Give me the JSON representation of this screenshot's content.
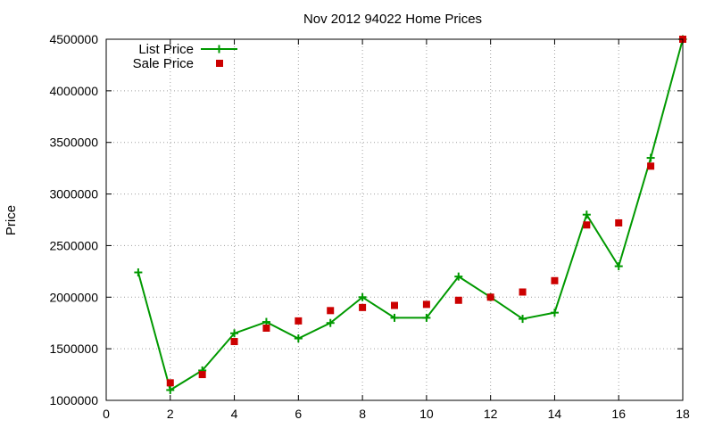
{
  "chart_data": {
    "type": "line",
    "title": "Nov 2012 94022 Home Prices",
    "xlabel": "",
    "ylabel": "Price",
    "xlim": [
      0,
      18
    ],
    "ylim": [
      1000000,
      4500000
    ],
    "xticks": [
      0,
      2,
      4,
      6,
      8,
      10,
      12,
      14,
      16,
      18
    ],
    "yticks": [
      1000000,
      1500000,
      2000000,
      2500000,
      3000000,
      3500000,
      4000000,
      4500000
    ],
    "grid": true,
    "legend_position": "top-left",
    "series": [
      {
        "name": "List Price",
        "style": "line-with-plus-markers",
        "color": "#009900",
        "x": [
          1,
          2,
          3,
          4,
          5,
          6,
          7,
          8,
          9,
          10,
          11,
          12,
          13,
          14,
          15,
          16,
          17,
          18
        ],
        "y": [
          2240000,
          1100000,
          1290000,
          1650000,
          1760000,
          1600000,
          1750000,
          2000000,
          1800000,
          1800000,
          2200000,
          2000000,
          1790000,
          1850000,
          2800000,
          2300000,
          3350000,
          4500000
        ]
      },
      {
        "name": "Sale Price",
        "style": "square-markers",
        "color": "#cc0000",
        "x": [
          2,
          3,
          4,
          5,
          6,
          7,
          8,
          9,
          10,
          11,
          12,
          13,
          14,
          15,
          16,
          17,
          18
        ],
        "y": [
          1170000,
          1250000,
          1570000,
          1700000,
          1770000,
          1870000,
          1900000,
          1920000,
          1930000,
          1970000,
          2000000,
          2050000,
          2160000,
          2700000,
          2720000,
          3270000,
          4500000
        ]
      }
    ]
  }
}
